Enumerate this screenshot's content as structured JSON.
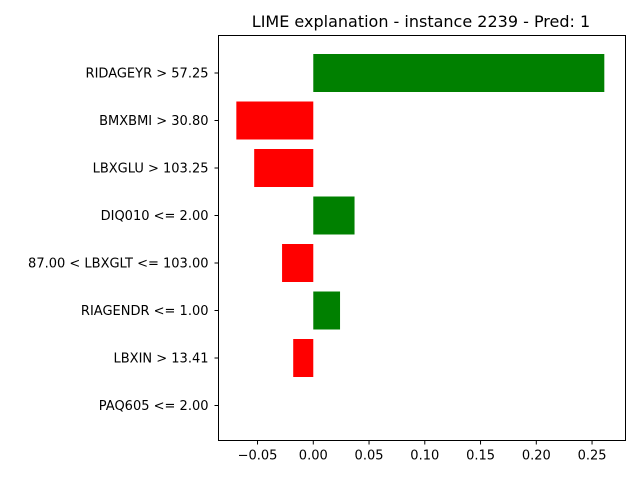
{
  "chart_data": {
    "type": "bar",
    "orientation": "horizontal",
    "title": "LIME explanation - instance 2239 - Pred: 1",
    "xlabel": "",
    "ylabel": "",
    "xlim": [
      -0.085,
      0.28
    ],
    "xticks": [
      -0.05,
      0.0,
      0.05,
      0.1,
      0.15,
      0.2,
      0.25
    ],
    "xtick_labels": [
      "−0.05",
      "0.00",
      "0.05",
      "0.10",
      "0.15",
      "0.20",
      "0.25"
    ],
    "grid": false,
    "legend": "none",
    "categories": [
      "RIDAGEYR > 57.25",
      "BMXBMI > 30.80",
      "LBXGLU > 103.25",
      "DIQ010 <= 2.00",
      "87.00 < LBXGLT <= 103.00",
      "RIAGENDR <= 1.00",
      "LBXIN > 13.41",
      "PAQ605 <= 2.00"
    ],
    "values": [
      0.261,
      -0.069,
      -0.053,
      0.037,
      -0.028,
      0.024,
      -0.018,
      0.0
    ],
    "colors": {
      "positive": "#008000",
      "negative": "#ff0000"
    }
  }
}
